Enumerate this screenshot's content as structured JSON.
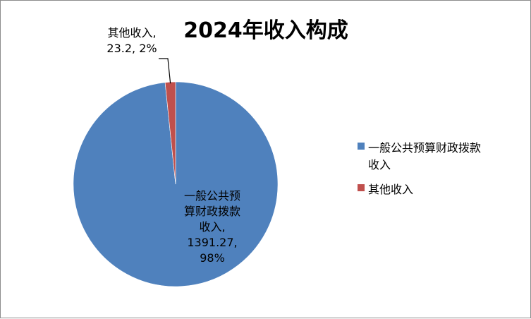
{
  "chart_data": {
    "type": "pie",
    "title": "2024年收入构成",
    "start_angle_deg": 0,
    "legend_position": "right",
    "slices": [
      {
        "name": "一般公共预算财政拨款收入",
        "value": 1391.27,
        "percent": "98%",
        "color": "#4F81BD",
        "label_lines": [
          "一般公共预",
          "算财政拨款",
          "收入,",
          "1391.27,",
          "98%"
        ],
        "legend_lines": [
          "一般公共预算财政拨款",
          "收入"
        ]
      },
      {
        "name": "其他收入",
        "value": 23.2,
        "percent": "2%",
        "color": "#C0504D",
        "label_lines": [
          "其他收入,",
          "23.2, 2%"
        ],
        "legend_lines": [
          "其他收入"
        ]
      }
    ]
  }
}
